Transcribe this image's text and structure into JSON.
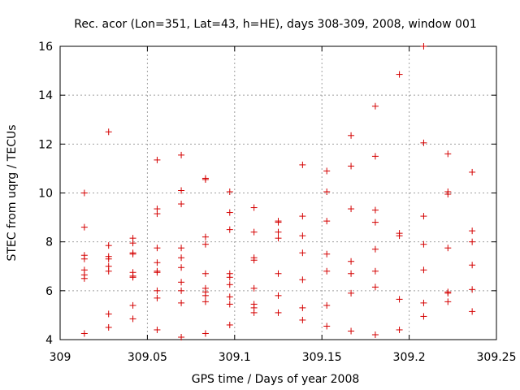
{
  "chart_data": {
    "type": "scatter",
    "title": "Rec. acor (Lon=351, Lat=43, h=HE), days 308-309, 2008, window 001",
    "xlabel": "GPS time / Days of year 2008",
    "ylabel": "STEC from uqrg / TECUs",
    "xlim": [
      309,
      309.25
    ],
    "ylim": [
      4,
      16
    ],
    "grid": true,
    "x_ticks": [
      "309",
      "309.05",
      "309.1",
      "309.15",
      "309.2",
      "309.25"
    ],
    "y_ticks": [
      "4",
      "6",
      "8",
      "10",
      "12",
      "14",
      "16"
    ],
    "marker": "+",
    "color": "#d40000",
    "series": [
      {
        "name": "STEC",
        "points": [
          [
            309.0139,
            10.0
          ],
          [
            309.0139,
            8.6
          ],
          [
            309.0139,
            7.45
          ],
          [
            309.0139,
            7.3
          ],
          [
            309.0139,
            6.85
          ],
          [
            309.0139,
            6.65
          ],
          [
            309.0139,
            6.5
          ],
          [
            309.0139,
            4.25
          ],
          [
            309.0278,
            12.5
          ],
          [
            309.0278,
            7.85
          ],
          [
            309.0278,
            7.4
          ],
          [
            309.0278,
            7.3
          ],
          [
            309.0278,
            7.0
          ],
          [
            309.0278,
            6.8
          ],
          [
            309.0278,
            5.05
          ],
          [
            309.0278,
            4.5
          ],
          [
            309.0417,
            8.15
          ],
          [
            309.0417,
            7.95
          ],
          [
            309.0417,
            7.55
          ],
          [
            309.0417,
            7.5
          ],
          [
            309.0417,
            6.75
          ],
          [
            309.0417,
            6.6
          ],
          [
            309.0417,
            6.55
          ],
          [
            309.0417,
            5.4
          ],
          [
            309.0417,
            4.85
          ],
          [
            309.0556,
            11.35
          ],
          [
            309.0556,
            9.35
          ],
          [
            309.0556,
            9.15
          ],
          [
            309.0556,
            7.75
          ],
          [
            309.0556,
            7.15
          ],
          [
            309.0556,
            6.8
          ],
          [
            309.0556,
            6.75
          ],
          [
            309.0556,
            6.0
          ],
          [
            309.0556,
            5.7
          ],
          [
            309.0556,
            4.4
          ],
          [
            309.0694,
            11.55
          ],
          [
            309.0694,
            10.1
          ],
          [
            309.0694,
            9.55
          ],
          [
            309.0694,
            7.75
          ],
          [
            309.0694,
            7.35
          ],
          [
            309.0694,
            6.95
          ],
          [
            309.0694,
            6.35
          ],
          [
            309.0694,
            6.0
          ],
          [
            309.0694,
            5.5
          ],
          [
            309.0694,
            4.1
          ],
          [
            309.0833,
            10.6
          ],
          [
            309.0833,
            10.55
          ],
          [
            309.0833,
            8.2
          ],
          [
            309.0833,
            7.9
          ],
          [
            309.0833,
            6.7
          ],
          [
            309.0833,
            6.1
          ],
          [
            309.0833,
            5.95
          ],
          [
            309.0833,
            5.8
          ],
          [
            309.0833,
            5.55
          ],
          [
            309.0833,
            4.25
          ],
          [
            309.0972,
            10.05
          ],
          [
            309.0972,
            9.2
          ],
          [
            309.0972,
            8.5
          ],
          [
            309.0972,
            6.7
          ],
          [
            309.0972,
            6.55
          ],
          [
            309.0972,
            6.25
          ],
          [
            309.0972,
            5.75
          ],
          [
            309.0972,
            5.45
          ],
          [
            309.0972,
            4.6
          ],
          [
            309.1111,
            9.4
          ],
          [
            309.1111,
            8.4
          ],
          [
            309.1111,
            7.35
          ],
          [
            309.1111,
            7.25
          ],
          [
            309.1111,
            6.1
          ],
          [
            309.1111,
            5.45
          ],
          [
            309.1111,
            5.3
          ],
          [
            309.1111,
            5.1
          ],
          [
            309.125,
            8.85
          ],
          [
            309.125,
            8.8
          ],
          [
            309.125,
            8.4
          ],
          [
            309.125,
            8.15
          ],
          [
            309.125,
            6.7
          ],
          [
            309.125,
            5.8
          ],
          [
            309.125,
            5.1
          ],
          [
            309.1389,
            11.15
          ],
          [
            309.1389,
            9.05
          ],
          [
            309.1389,
            8.25
          ],
          [
            309.1389,
            7.55
          ],
          [
            309.1389,
            6.45
          ],
          [
            309.1389,
            5.3
          ],
          [
            309.1389,
            4.8
          ],
          [
            309.1528,
            10.9
          ],
          [
            309.1528,
            10.05
          ],
          [
            309.1528,
            8.85
          ],
          [
            309.1528,
            7.5
          ],
          [
            309.1528,
            6.8
          ],
          [
            309.1528,
            5.4
          ],
          [
            309.1528,
            4.55
          ],
          [
            309.1667,
            12.35
          ],
          [
            309.1667,
            11.1
          ],
          [
            309.1667,
            9.35
          ],
          [
            309.1667,
            7.2
          ],
          [
            309.1667,
            6.7
          ],
          [
            309.1667,
            5.9
          ],
          [
            309.1667,
            4.35
          ],
          [
            309.1806,
            13.55
          ],
          [
            309.1806,
            11.5
          ],
          [
            309.1806,
            9.3
          ],
          [
            309.1806,
            8.8
          ],
          [
            309.1806,
            7.7
          ],
          [
            309.1806,
            6.8
          ],
          [
            309.1806,
            6.15
          ],
          [
            309.1806,
            4.2
          ],
          [
            309.1944,
            14.85
          ],
          [
            309.1944,
            8.35
          ],
          [
            309.1944,
            8.25
          ],
          [
            309.1944,
            5.65
          ],
          [
            309.1944,
            4.4
          ],
          [
            309.2083,
            16.0
          ],
          [
            309.2083,
            12.05
          ],
          [
            309.2083,
            9.05
          ],
          [
            309.2083,
            7.9
          ],
          [
            309.2083,
            6.85
          ],
          [
            309.2083,
            5.5
          ],
          [
            309.2083,
            4.95
          ],
          [
            309.2222,
            11.6
          ],
          [
            309.2222,
            10.05
          ],
          [
            309.2222,
            9.95
          ],
          [
            309.2222,
            7.75
          ],
          [
            309.2222,
            5.95
          ],
          [
            309.2222,
            5.9
          ],
          [
            309.2222,
            5.55
          ],
          [
            309.2361,
            10.85
          ],
          [
            309.2361,
            8.45
          ],
          [
            309.2361,
            8.0
          ],
          [
            309.2361,
            7.05
          ],
          [
            309.2361,
            6.05
          ],
          [
            309.2361,
            5.15
          ]
        ]
      }
    ]
  }
}
